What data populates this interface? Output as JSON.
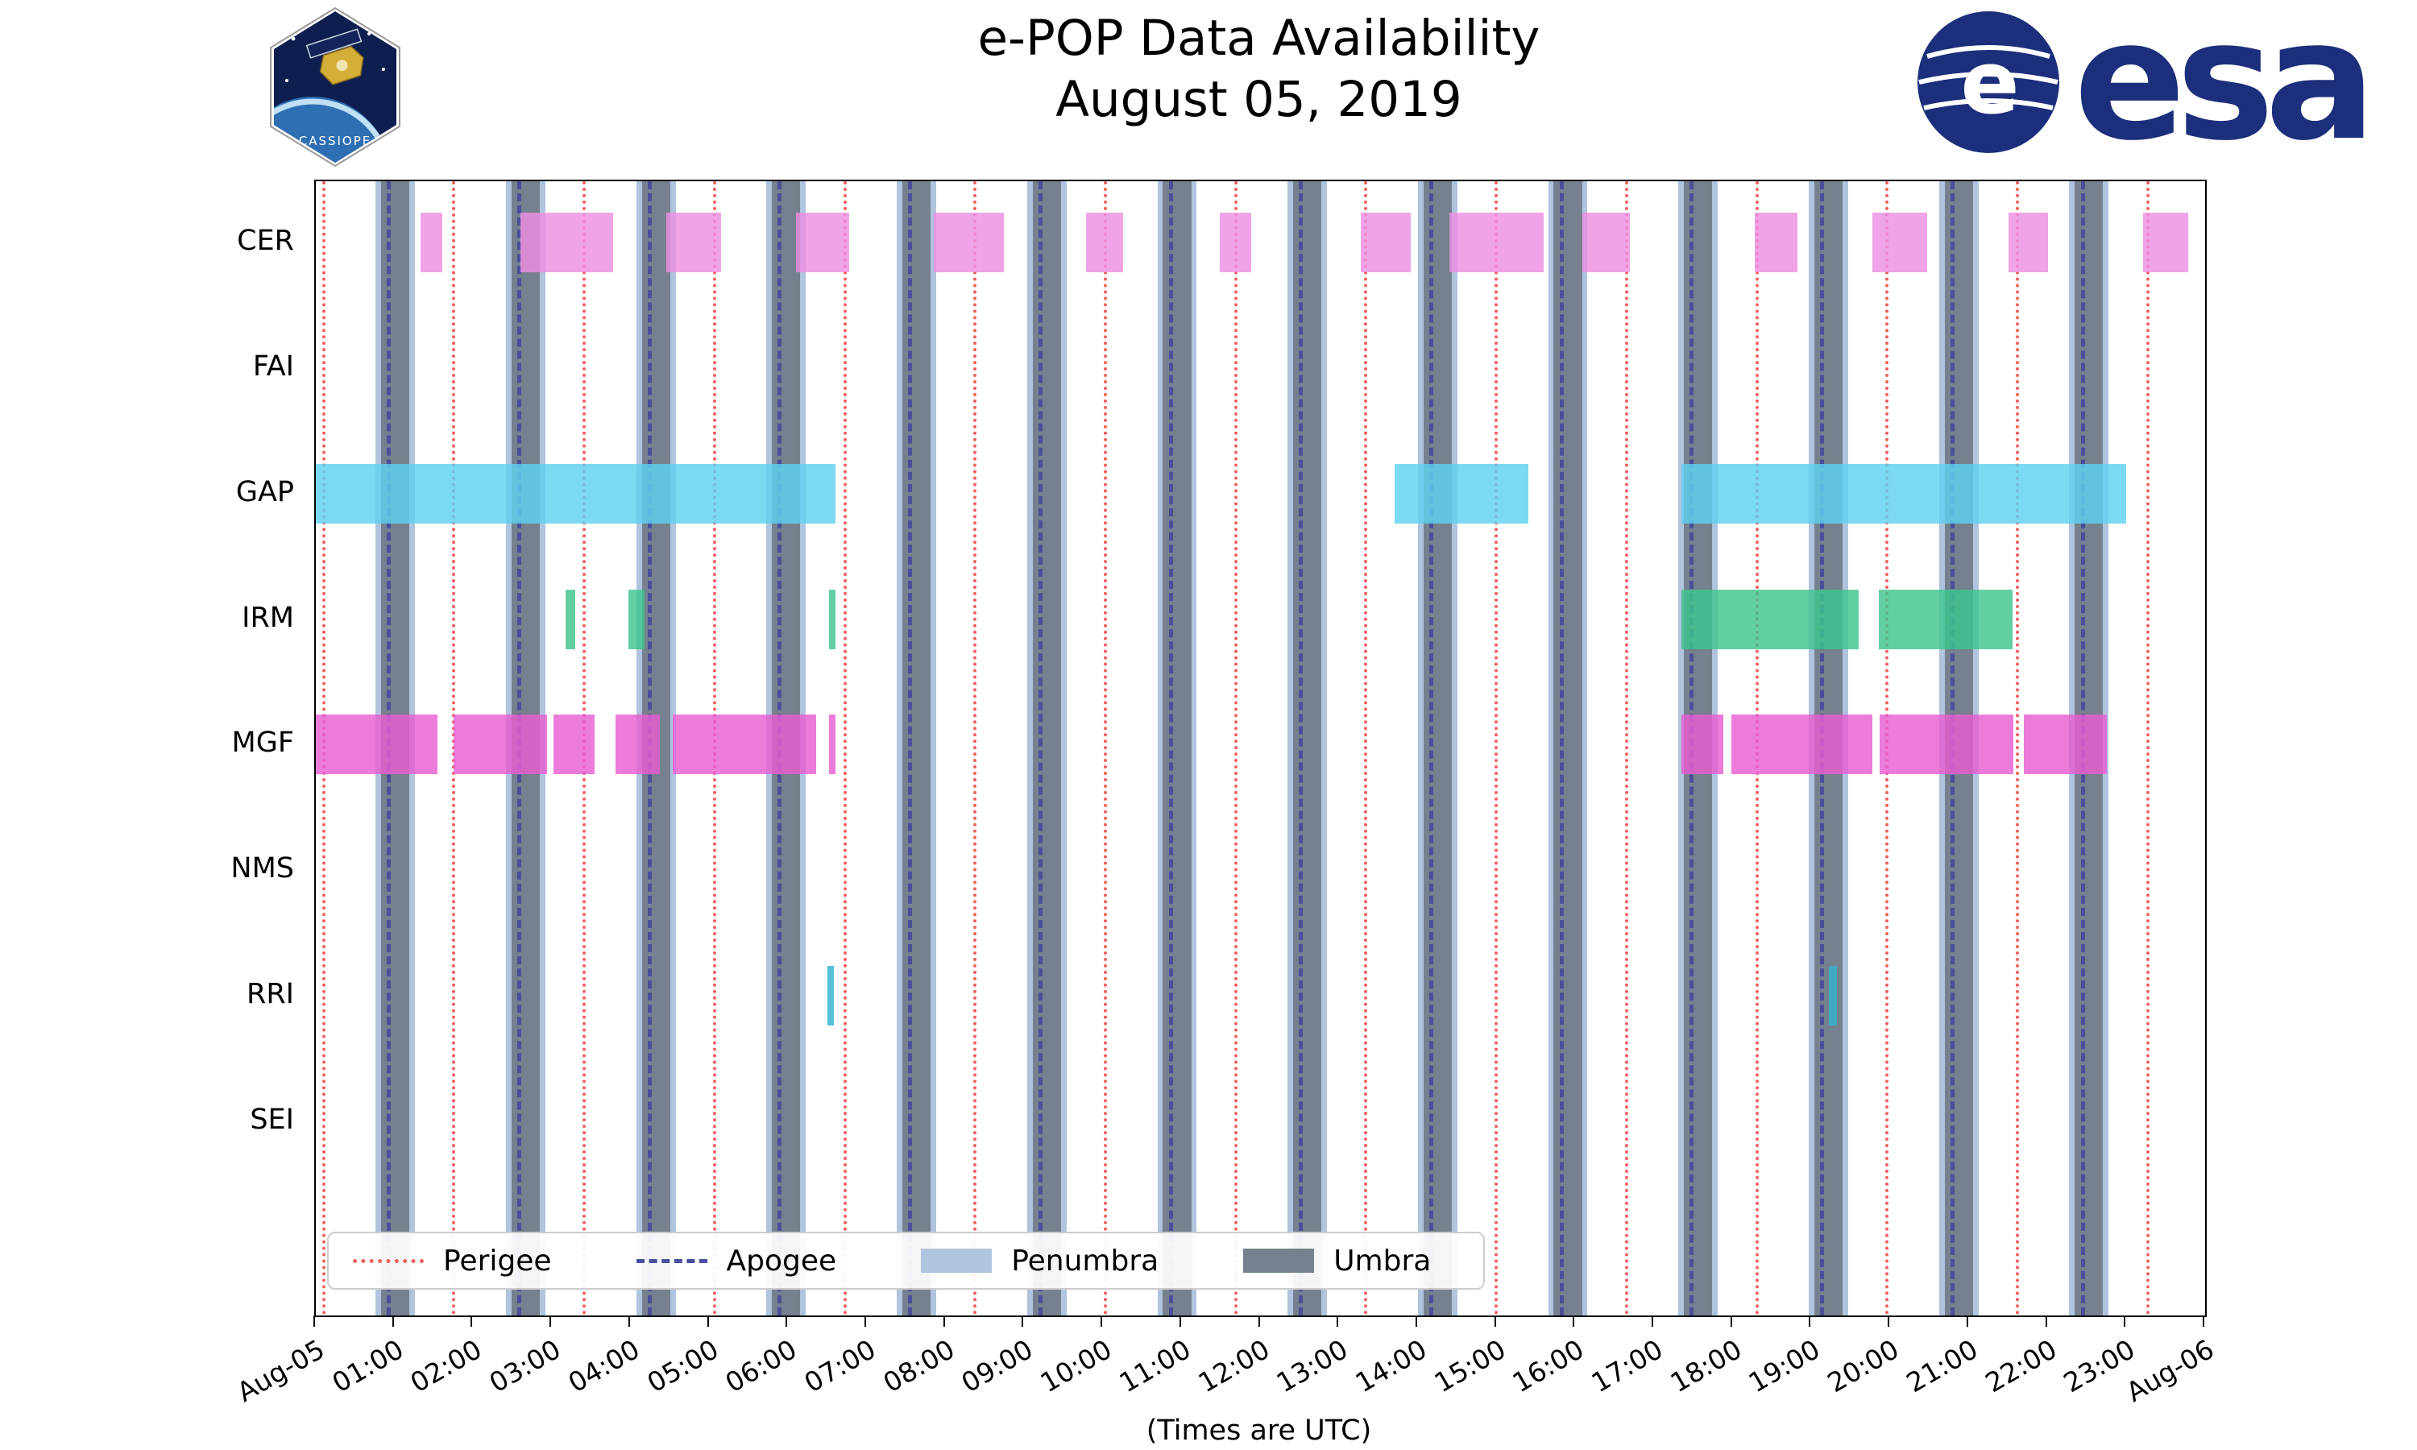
{
  "logos": {
    "cassiope": "CASSIOPE",
    "esa": "esa"
  },
  "chart_data": {
    "type": "bar",
    "subtype": "broken-horizontal-timeline (instrument data availability)",
    "title": "e-POP Data Availability",
    "subtitle": "August 05, 2019",
    "xlabel": "(Times are UTC)",
    "xlim_hours": [
      0,
      24
    ],
    "x_ticks": [
      "Aug-05",
      "01:00",
      "02:00",
      "03:00",
      "04:00",
      "05:00",
      "06:00",
      "07:00",
      "08:00",
      "09:00",
      "10:00",
      "11:00",
      "12:00",
      "13:00",
      "14:00",
      "15:00",
      "16:00",
      "17:00",
      "18:00",
      "19:00",
      "20:00",
      "21:00",
      "22:00",
      "23:00",
      "Aug-06"
    ],
    "rows": [
      "CER",
      "FAI",
      "GAP",
      "IRM",
      "MGF",
      "NMS",
      "RRI",
      "SEI"
    ],
    "series": [
      {
        "name": "CER",
        "color": "#ee8fe3",
        "intervals": [
          [
            1.33,
            1.61
          ],
          [
            2.6,
            3.78
          ],
          [
            4.45,
            5.15
          ],
          [
            6.1,
            6.78
          ],
          [
            7.85,
            8.74
          ],
          [
            9.78,
            10.25
          ],
          [
            11.48,
            11.88
          ],
          [
            13.27,
            13.91
          ],
          [
            14.4,
            15.6
          ],
          [
            16.09,
            16.69
          ],
          [
            18.28,
            18.82
          ],
          [
            19.77,
            20.47
          ],
          [
            21.5,
            22.0
          ],
          [
            23.21,
            23.79
          ]
        ]
      },
      {
        "name": "FAI",
        "color": "#ee8fe3",
        "intervals": []
      },
      {
        "name": "GAP",
        "color": "#5fd1ef",
        "intervals": [
          [
            0.0,
            6.6
          ],
          [
            13.7,
            15.4
          ],
          [
            17.35,
            23.0
          ]
        ]
      },
      {
        "name": "IRM",
        "color": "#3ec48d",
        "intervals": [
          [
            3.17,
            3.3
          ],
          [
            3.97,
            4.18
          ],
          [
            6.52,
            6.6
          ],
          [
            17.35,
            19.6
          ],
          [
            19.85,
            21.55
          ]
        ]
      },
      {
        "name": "MGF",
        "color": "#e85ed2",
        "intervals": [
          [
            0.0,
            1.55
          ],
          [
            1.75,
            2.94
          ],
          [
            3.02,
            3.54
          ],
          [
            3.81,
            4.37
          ],
          [
            4.53,
            6.36
          ],
          [
            6.52,
            6.6
          ],
          [
            17.35,
            17.88
          ],
          [
            17.98,
            19.77
          ],
          [
            19.87,
            21.56
          ],
          [
            21.7,
            22.75
          ]
        ]
      },
      {
        "name": "NMS",
        "color": "#cccccc",
        "intervals": []
      },
      {
        "name": "RRI",
        "color": "#2fb4cf",
        "intervals": [
          [
            6.5,
            6.58
          ],
          [
            19.22,
            19.32
          ]
        ]
      },
      {
        "name": "SEI",
        "color": "#cccccc",
        "intervals": []
      }
    ],
    "orbit_events": {
      "perigee": {
        "style": "dotted",
        "color": "#f26060",
        "times": [
          0.1,
          1.755,
          3.41,
          5.065,
          6.72,
          8.375,
          10.03,
          11.685,
          13.34,
          14.995,
          16.65,
          18.305,
          19.96,
          21.615,
          23.27
        ]
      },
      "apogee": {
        "style": "dashed",
        "color": "#4a4f9b",
        "times": [
          0.93,
          2.585,
          4.24,
          5.895,
          7.55,
          9.205,
          10.86,
          12.515,
          14.17,
          15.825,
          17.48,
          19.135,
          20.79,
          22.445
        ]
      },
      "umbra": {
        "color": "#75818e",
        "intervals": [
          [
            0.83,
            1.19
          ],
          [
            2.485,
            2.845
          ],
          [
            4.14,
            4.5
          ],
          [
            5.795,
            6.155
          ],
          [
            7.45,
            7.81
          ],
          [
            9.105,
            9.465
          ],
          [
            10.76,
            11.12
          ],
          [
            12.415,
            12.775
          ],
          [
            14.07,
            14.43
          ],
          [
            15.725,
            16.085
          ],
          [
            17.38,
            17.74
          ],
          [
            19.035,
            19.395
          ],
          [
            20.69,
            21.05
          ],
          [
            22.345,
            22.705
          ]
        ]
      },
      "penumbra": {
        "color": "#b0c4de",
        "pad_hours": 0.07
      }
    },
    "legend": [
      {
        "label": "Perigee",
        "swatch": "dotted-line",
        "color": "#f26060"
      },
      {
        "label": "Apogee",
        "swatch": "dashed-line",
        "color": "#4a4f9b"
      },
      {
        "label": "Penumbra",
        "swatch": "patch",
        "color": "#b0c4de"
      },
      {
        "label": "Umbra",
        "swatch": "patch",
        "color": "#75818e"
      }
    ],
    "legend_position": "lower left inside plot",
    "grid": false
  }
}
